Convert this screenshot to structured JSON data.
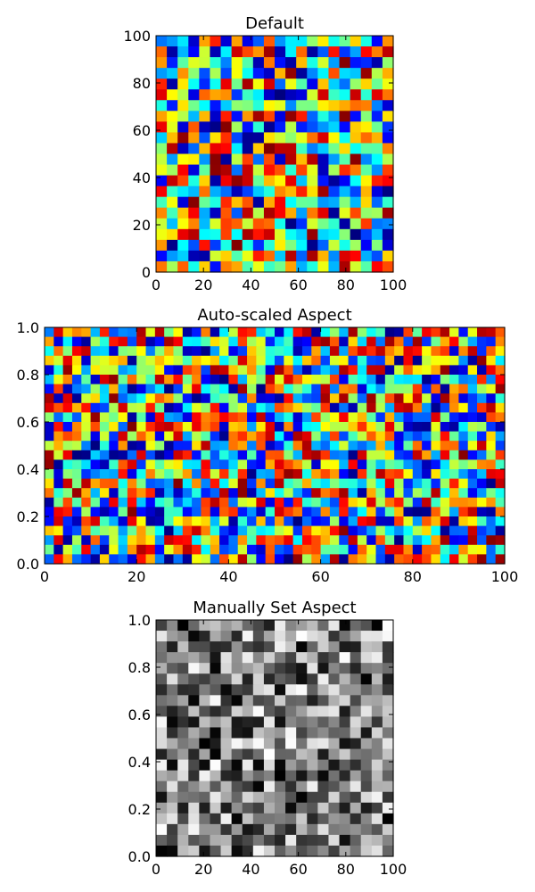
{
  "chart_data": [
    {
      "type": "heatmap",
      "title": "Default",
      "colormap": "jet",
      "xlim": [
        0,
        100
      ],
      "ylim": [
        0,
        100
      ],
      "xticks": [
        "0",
        "20",
        "40",
        "60",
        "80",
        "100"
      ],
      "yticks": [
        "0",
        "20",
        "40",
        "60",
        "80",
        "100"
      ],
      "aspect": "equal",
      "grid": false
    },
    {
      "type": "heatmap",
      "title": "Auto-scaled Aspect",
      "colormap": "jet",
      "xlim": [
        0,
        100
      ],
      "ylim": [
        0.0,
        1.0
      ],
      "xticks": [
        "0",
        "20",
        "40",
        "60",
        "80",
        "100"
      ],
      "yticks": [
        "0.0",
        "0.2",
        "0.4",
        "0.6",
        "0.8",
        "1.0"
      ],
      "aspect": "auto",
      "grid": false
    },
    {
      "type": "heatmap",
      "title": "Manually Set Aspect",
      "colormap": "gray",
      "xlim": [
        0,
        100
      ],
      "ylim": [
        0.0,
        1.0
      ],
      "xticks": [
        "0",
        "20",
        "40",
        "60",
        "80",
        "100"
      ],
      "yticks": [
        "0.0",
        "0.2",
        "0.4",
        "0.6",
        "0.8",
        "1.0"
      ],
      "aspect": "manual",
      "grid": false
    }
  ]
}
